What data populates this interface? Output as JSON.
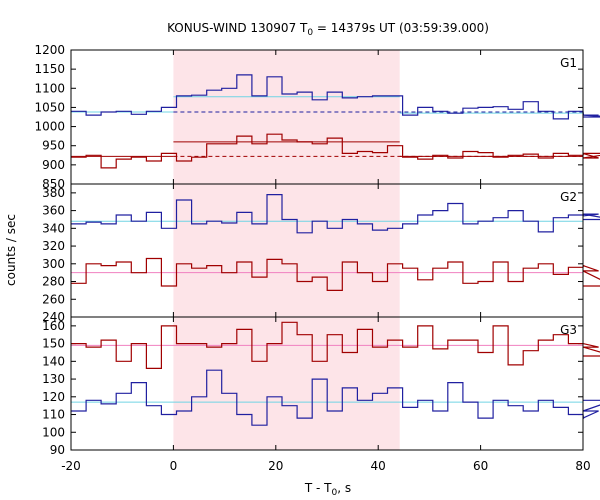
{
  "chart_data": {
    "type": "line",
    "title_prefix": "KONUS-WIND 130907 T",
    "title_sub": "0",
    "title_suffix": " = 14379s UT (03:59:39.000)",
    "ylabel": "counts / sec",
    "xlabel_prefix": "T - T",
    "xlabel_sub": "0",
    "xlabel_suffix": ", s",
    "xlim": [
      -20,
      80
    ],
    "xticks": [
      "-20",
      "0",
      "20",
      "40",
      "60",
      "80"
    ],
    "bin_width": 2.944,
    "x_start": -20,
    "shaded_region": [
      0,
      44.2
    ],
    "colors": {
      "blue": "#2020a0",
      "red": "#a00000",
      "cyan": "#70d4e4",
      "pink": "#f080c0",
      "shade": "#fde4e8"
    },
    "panels": [
      {
        "name": "G1",
        "ylim": [
          850,
          1200
        ],
        "yticks": [
          850,
          900,
          950,
          1000,
          1050,
          1100,
          1150,
          1200
        ],
        "series": [
          {
            "color": "blue",
            "values": [
              1040,
              1030,
              1038,
              1040,
              1032,
              1040,
              1050,
              1080,
              1082,
              1095,
              1100,
              1135,
              1080,
              1130,
              1085,
              1090,
              1070,
              1090,
              1075,
              1078,
              1080,
              1080,
              1030,
              1050,
              1040,
              1035,
              1048,
              1050,
              1052,
              1045,
              1065,
              1040,
              1020,
              1040,
              1030,
              1030,
              1025
            ]
          },
          {
            "color": "red",
            "values": [
              920,
              925,
              892,
              915,
              920,
              910,
              930,
              910,
              920,
              955,
              955,
              975,
              955,
              980,
              965,
              960,
              955,
              970,
              930,
              935,
              932,
              950,
              920,
              915,
              925,
              918,
              935,
              932,
              920,
              925,
              928,
              918,
              930,
              925,
              930,
              918,
              930
            ]
          }
        ],
        "fit_lines": [
          {
            "color": "cyan",
            "segments": [
              [
                -20,
                0,
                1038
              ],
              [
                0,
                44.2,
                1078
              ],
              [
                44.2,
                80,
                1035
              ]
            ]
          },
          {
            "color": "blue",
            "dash": true,
            "segments": [
              [
                0,
                80,
                1038
              ]
            ]
          },
          {
            "color": "red",
            "segments": [
              [
                -20,
                0,
                922
              ],
              [
                0,
                44.2,
                960
              ],
              [
                44.2,
                80,
                922
              ]
            ]
          },
          {
            "color": "red",
            "dash": true,
            "segments": [
              [
                0,
                80,
                922
              ]
            ]
          }
        ]
      },
      {
        "name": "G2",
        "ylim": [
          240,
          390
        ],
        "yticks": [
          240,
          260,
          280,
          300,
          320,
          340,
          360,
          380
        ],
        "series": [
          {
            "color": "blue",
            "values": [
              345,
              347,
              345,
              355,
              348,
              358,
              340,
              372,
              345,
              348,
              346,
              358,
              345,
              378,
              350,
              335,
              348,
              340,
              350,
              345,
              338,
              340,
              345,
              355,
              360,
              368,
              345,
              348,
              352,
              360,
              348,
              336,
              352,
              355,
              354,
              356,
              350
            ]
          },
          {
            "color": "blue",
            "hidden_color": "red",
            "values": [
              278,
              300,
              298,
              302,
              290,
              306,
              275,
              300,
              295,
              298,
              290,
              302,
              285,
              305,
              300,
              280,
              285,
              270,
              302,
              290,
              280,
              300,
              295,
              282,
              295,
              302,
              278,
              280,
              302,
              280,
              295,
              300,
              288,
              296,
              298,
              292,
              275
            ]
          }
        ],
        "fit_lines": [
          {
            "color": "cyan",
            "segments": [
              [
                -20,
                80,
                348
              ]
            ]
          },
          {
            "color": "pink",
            "segments": [
              [
                -20,
                80,
                290
              ]
            ]
          }
        ]
      },
      {
        "name": "G3",
        "ylim": [
          90,
          165
        ],
        "yticks": [
          90,
          100,
          110,
          120,
          130,
          140,
          150,
          160
        ],
        "series": [
          {
            "color": "red",
            "values": [
              150,
              148,
              152,
              140,
              150,
              136,
              160,
              150,
              150,
              148,
              150,
              158,
              140,
              150,
              162,
              155,
              140,
              155,
              145,
              158,
              148,
              152,
              148,
              160,
              147,
              152,
              152,
              145,
              160,
              138,
              146,
              152,
              155,
              150,
              150,
              148,
              143
            ]
          },
          {
            "color": "blue",
            "values": [
              112,
              118,
              116,
              122,
              128,
              115,
              110,
              112,
              120,
              135,
              122,
              110,
              104,
              120,
              115,
              108,
              130,
              112,
              125,
              118,
              122,
              125,
              114,
              118,
              112,
              128,
              117,
              108,
              118,
              115,
              112,
              118,
              114,
              110,
              108,
              112,
              118
            ]
          }
        ],
        "fit_lines": [
          {
            "color": "pink",
            "segments": [
              [
                -20,
                80,
                149
              ]
            ]
          },
          {
            "color": "cyan",
            "segments": [
              [
                -20,
                80,
                117
              ]
            ]
          }
        ]
      }
    ]
  }
}
